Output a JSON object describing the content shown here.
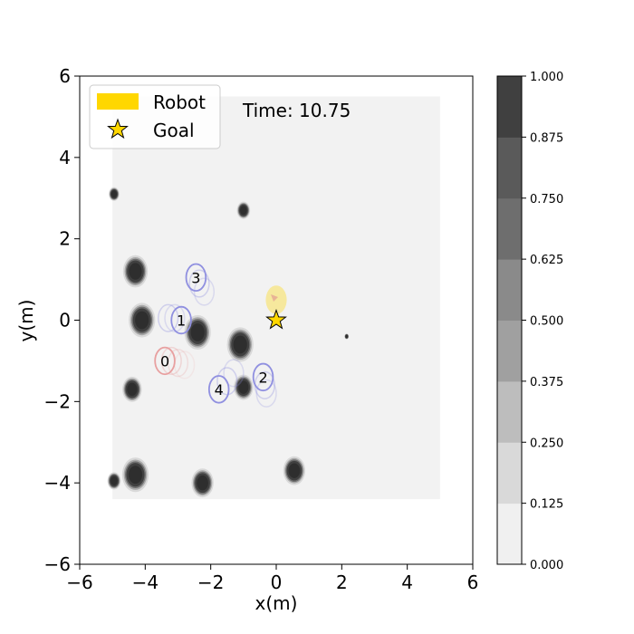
{
  "chart_data": {
    "type": "heatmap",
    "xlabel": "x(m)",
    "ylabel": "y(m)",
    "xlim": [
      -6,
      6
    ],
    "ylim": [
      -6,
      6
    ],
    "xticks": [
      "−6",
      "−4",
      "−2",
      "0",
      "2",
      "4",
      "6"
    ],
    "yticks": [
      "−6",
      "−4",
      "−2",
      "0",
      "2",
      "4",
      "6"
    ],
    "time_label": "Time: 10.75",
    "grid": false,
    "map_extent": {
      "x": [
        -5,
        5
      ],
      "y": [
        -4.4,
        5.5
      ]
    },
    "legend": {
      "placement": "top-left",
      "items": [
        {
          "label": "Robot",
          "marker": "yellow-rectangle",
          "color": "#ffd700"
        },
        {
          "label": "Goal",
          "marker": "star",
          "color": "#ffd700"
        }
      ]
    },
    "colorbar": {
      "ticks": [
        "0.000",
        "0.125",
        "0.250",
        "0.375",
        "0.500",
        "0.625",
        "0.750",
        "0.875",
        "1.000"
      ],
      "colors": [
        "#f0f0f0",
        "#d9d9d9",
        "#bdbdbd",
        "#a0a0a0",
        "#8a8a8a",
        "#6e6e6e",
        "#5a5a5a",
        "#404040"
      ]
    },
    "obstacles": [
      {
        "x": -4.3,
        "y": 1.2,
        "r": 0.28
      },
      {
        "x": -4.1,
        "y": 0.0,
        "r": 0.3
      },
      {
        "x": -2.4,
        "y": -0.3,
        "r": 0.3
      },
      {
        "x": -1.1,
        "y": -0.6,
        "r": 0.3
      },
      {
        "x": -1.0,
        "y": 2.7,
        "r": 0.15
      },
      {
        "x": -4.4,
        "y": -1.7,
        "r": 0.22
      },
      {
        "x": -1.0,
        "y": -1.65,
        "r": 0.22
      },
      {
        "x": -4.3,
        "y": -3.8,
        "r": 0.3
      },
      {
        "x": -2.25,
        "y": -4.0,
        "r": 0.25
      },
      {
        "x": 0.55,
        "y": -3.7,
        "r": 0.25
      },
      {
        "x": -4.95,
        "y": 3.1,
        "r": 0.12
      },
      {
        "x": -4.95,
        "y": -3.95,
        "r": 0.15
      },
      {
        "x": 2.15,
        "y": -0.4,
        "r": 0.05
      }
    ],
    "agents": [
      {
        "id": "0",
        "x": -3.4,
        "y": -1.0,
        "color": "#e8a0a0",
        "trail": [
          [
            -3.2,
            -1.0
          ],
          [
            -3.0,
            -1.05
          ],
          [
            -2.8,
            -1.1
          ]
        ]
      },
      {
        "id": "1",
        "x": -2.9,
        "y": 0.0,
        "color": "#9090e0",
        "trail": [
          [
            -3.3,
            0.05
          ],
          [
            -3.1,
            0.05
          ]
        ]
      },
      {
        "id": "2",
        "x": -0.4,
        "y": -1.4,
        "color": "#9090e0",
        "trail": [
          [
            -0.35,
            -1.6
          ],
          [
            -0.3,
            -1.8
          ]
        ]
      },
      {
        "id": "3",
        "x": -2.45,
        "y": 1.05,
        "color": "#9090e0",
        "trail": [
          [
            -2.35,
            0.9
          ],
          [
            -2.2,
            0.7
          ]
        ]
      },
      {
        "id": "4",
        "x": -1.75,
        "y": -1.7,
        "color": "#9090e0",
        "trail": [
          [
            -1.5,
            -1.5
          ],
          [
            -1.3,
            -1.3
          ]
        ]
      }
    ],
    "robot": {
      "x": 0.0,
      "y": 0.5,
      "color": "#ffd700"
    },
    "goal": {
      "x": 0.0,
      "y": 0.0
    }
  }
}
